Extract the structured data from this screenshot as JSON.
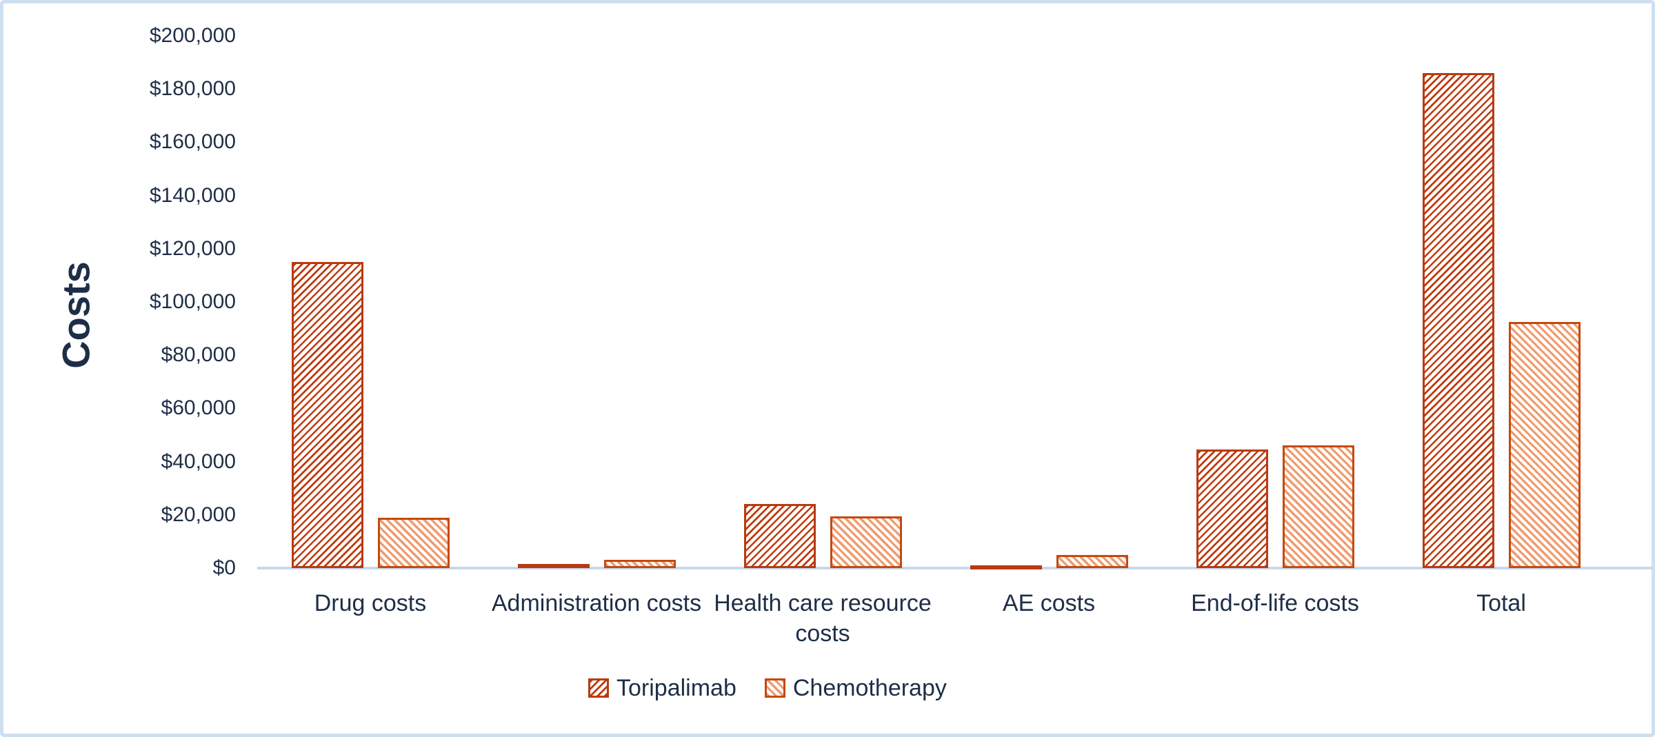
{
  "chart_data": {
    "type": "bar",
    "title": "",
    "xlabel": "",
    "ylabel": "Costs",
    "ylim": [
      0,
      200000
    ],
    "ytick_step": 20000,
    "ytick_labels": [
      "$0",
      "$20,000",
      "$40,000",
      "$60,000",
      "$80,000",
      "$100,000",
      "$120,000",
      "$140,000",
      "$160,000",
      "$180,000",
      "$200,000"
    ],
    "categories": [
      "Drug costs",
      "Administration costs",
      "Health care resource\ncosts",
      "AE costs",
      "End-of-life costs",
      "Total"
    ],
    "series": [
      {
        "name": "Toripalimab",
        "hatch": "/",
        "hatch_color": "#c03a0d",
        "border_color": "#b93a10",
        "values": [
          115000,
          1500,
          24000,
          1000,
          44500,
          186000
        ]
      },
      {
        "name": "Chemotherapy",
        "hatch": "\\",
        "hatch_color": "#f09a6c",
        "border_color": "#c4490f",
        "values": [
          19000,
          3000,
          19500,
          5000,
          46000,
          92500
        ]
      }
    ],
    "grid": false,
    "legend_position": "bottom",
    "axis_line_color": "#c9d9ee",
    "frame_color": "#cfdff2",
    "text_color": "#1e2e47"
  }
}
